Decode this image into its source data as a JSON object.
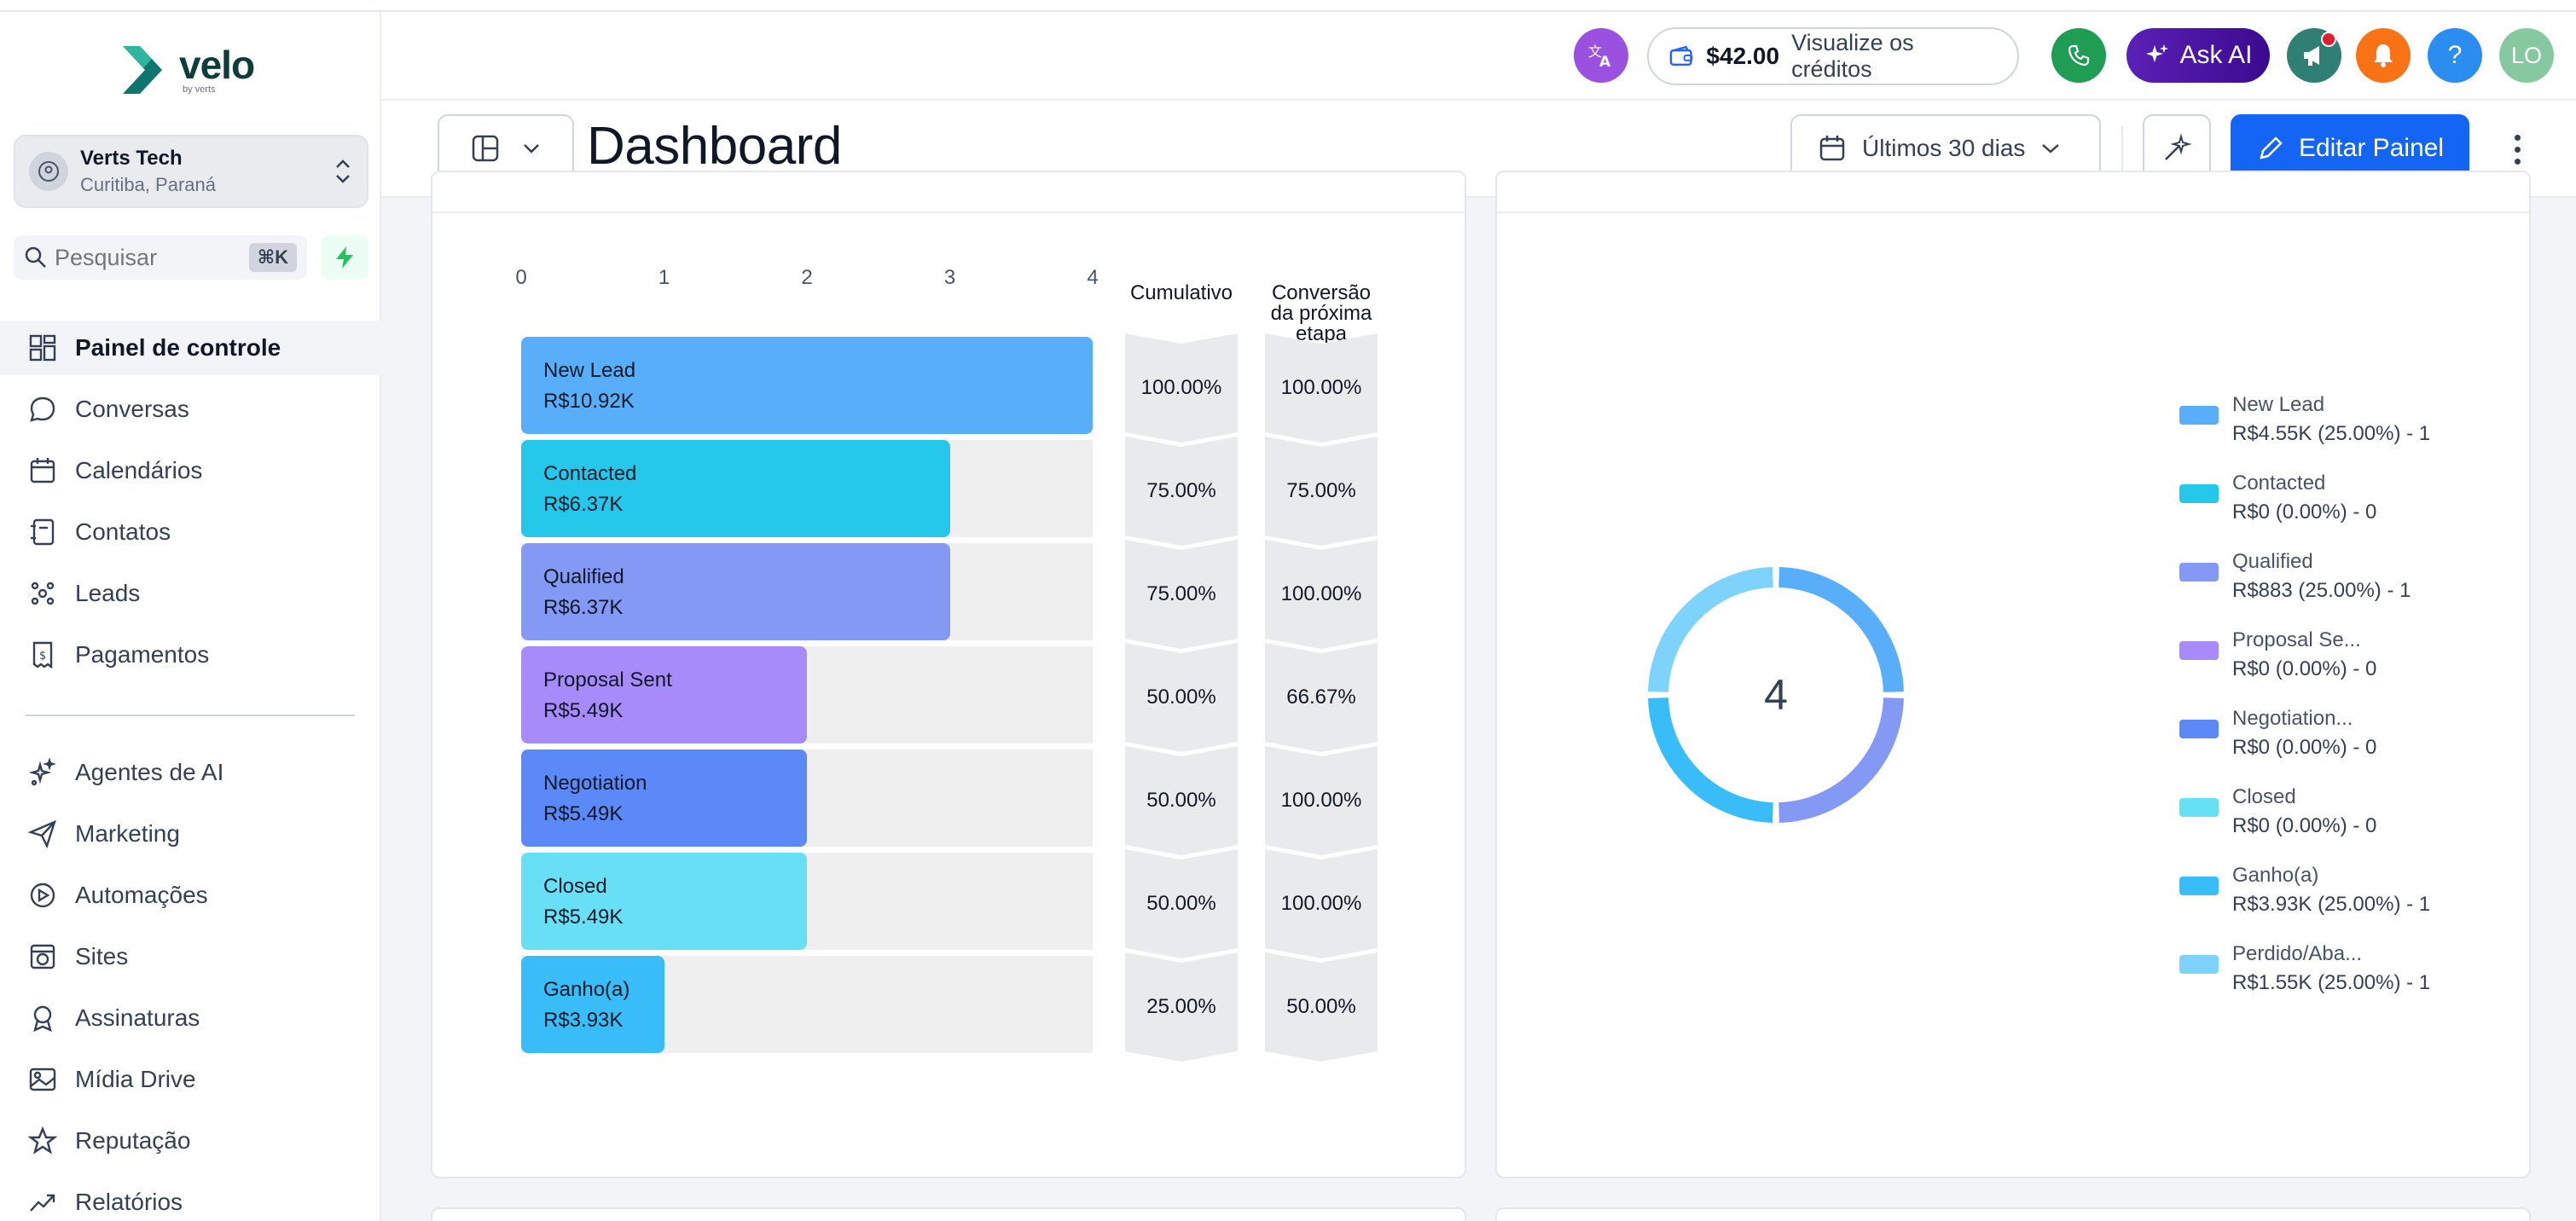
{
  "brand": {
    "name": "velo",
    "sub": "by verts"
  },
  "account": {
    "name": "Verts Tech",
    "location": "Curitiba, Paraná"
  },
  "search": {
    "placeholder": "Pesquisar",
    "shortcut": "⌘K"
  },
  "nav": {
    "primary": [
      {
        "label": "Painel de controle",
        "icon": "grid-icon",
        "active": true
      },
      {
        "label": "Conversas",
        "icon": "chat-icon"
      },
      {
        "label": "Calendários",
        "icon": "calendar-icon"
      },
      {
        "label": "Contatos",
        "icon": "contacts-icon"
      },
      {
        "label": "Leads",
        "icon": "leads-icon"
      },
      {
        "label": "Pagamentos",
        "icon": "payments-icon"
      }
    ],
    "secondary": [
      {
        "label": "Agentes de AI",
        "icon": "sparkles-icon"
      },
      {
        "label": "Marketing",
        "icon": "send-icon"
      },
      {
        "label": "Automações",
        "icon": "automation-icon"
      },
      {
        "label": "Sites",
        "icon": "sites-icon"
      },
      {
        "label": "Assinaturas",
        "icon": "badge-icon"
      },
      {
        "label": "Mídia Drive",
        "icon": "image-icon"
      },
      {
        "label": "Reputação",
        "icon": "star-icon"
      },
      {
        "label": "Relatórios",
        "icon": "trend-icon"
      }
    ]
  },
  "topbar": {
    "translate_icon": "translate-icon",
    "credits_amount": "$42.00",
    "credits_link": "Visualize os créditos",
    "ask_ai": "Ask AI",
    "avatar_initials": "LO",
    "colors": {
      "phone": "#1f9d55",
      "announce": "#2f7f74",
      "bell": "#f97316",
      "help": "#2b8def"
    }
  },
  "page": {
    "title": "Dashboard",
    "date_range": "Últimos 30 dias",
    "edit_label": "Editar Painel"
  },
  "funnel": {
    "ticks": [
      "0",
      "1",
      "2",
      "3",
      "4"
    ],
    "cumulative_header": "Cumulativo",
    "conversion_header": [
      "Conversão",
      "da próxima",
      "etapa"
    ],
    "stages": [
      {
        "name": "New Lead",
        "value": "R$10.92K",
        "count": 4,
        "color": "#58aef9",
        "cumulative": "100.00%",
        "conversion": "100.00%"
      },
      {
        "name": "Contacted",
        "value": "R$6.37K",
        "count": 3,
        "color": "#25c8ea",
        "cumulative": "75.00%",
        "conversion": "75.00%"
      },
      {
        "name": "Qualified",
        "value": "R$6.37K",
        "count": 3,
        "color": "#8399f3",
        "cumulative": "75.00%",
        "conversion": "100.00%"
      },
      {
        "name": "Proposal Sent",
        "value": "R$5.49K",
        "count": 2,
        "color": "#a78bfa",
        "cumulative": "50.00%",
        "conversion": "66.67%"
      },
      {
        "name": "Negotiation",
        "value": "R$5.49K",
        "count": 2,
        "color": "#5b8af8",
        "cumulative": "50.00%",
        "conversion": "100.00%"
      },
      {
        "name": "Closed",
        "value": "R$5.49K",
        "count": 2,
        "color": "#67e0f5",
        "cumulative": "50.00%",
        "conversion": "100.00%"
      },
      {
        "name": "Ganho(a)",
        "value": "R$3.93K",
        "count": 1,
        "color": "#38bdf8",
        "cumulative": "25.00%",
        "conversion": "50.00%"
      }
    ]
  },
  "donut": {
    "total": "4",
    "segments": [
      {
        "name": "New Lead",
        "value": "R$4.55K (25.00%) - 1",
        "share": 25,
        "color": "#58aef9"
      },
      {
        "name": "Contacted",
        "value": "R$0 (0.00%) - 0",
        "share": 0,
        "color": "#25c8ea"
      },
      {
        "name": "Qualified",
        "value": "R$883 (25.00%) - 1",
        "share": 25,
        "color": "#8399f3"
      },
      {
        "name": "Proposal Se...",
        "value": "R$0 (0.00%) - 0",
        "share": 0,
        "color": "#a78bfa"
      },
      {
        "name": "Negotiation...",
        "value": "R$0 (0.00%) - 0",
        "share": 0,
        "color": "#5b8af8"
      },
      {
        "name": "Closed",
        "value": "R$0 (0.00%) - 0",
        "share": 0,
        "color": "#67e0f5"
      },
      {
        "name": "Ganho(a)",
        "value": "R$3.93K (25.00%) - 1",
        "share": 25,
        "color": "#38bdf8"
      },
      {
        "name": "Perdido/Aba...",
        "value": "R$1.55K (25.00%) - 1",
        "share": 25,
        "color": "#7dd3fc"
      }
    ]
  }
}
